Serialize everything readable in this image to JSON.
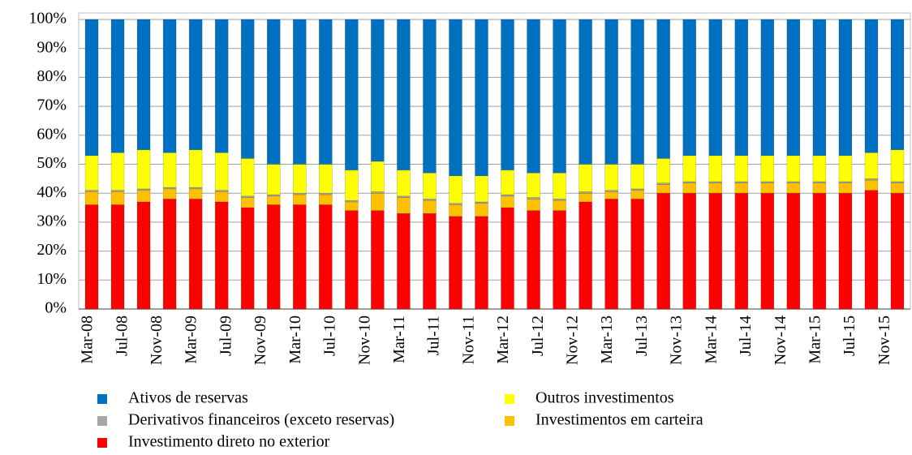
{
  "chart_data": {
    "type": "stacked_bar",
    "categories": [
      null,
      null,
      null,
      null,
      null,
      null,
      null,
      null,
      null,
      null,
      null,
      null,
      null,
      null,
      null,
      null,
      null,
      null,
      null,
      null,
      null,
      null,
      null,
      null,
      null,
      null,
      null,
      null,
      null,
      null,
      null,
      null
    ],
    "xticks": [
      "Mar-08",
      "Jul-08",
      "Nov-08",
      "Mar-09",
      "Jul-09",
      "Nov-09",
      "Mar-10",
      "Jul-10",
      "Nov-10",
      "Mar-11",
      "Jul-11",
      "Nov-11",
      "Mar-12",
      "Jul-12",
      "Nov-12",
      "Mar-13",
      "Jul-13",
      "Nov-13",
      "Mar-14",
      "Jul-14",
      "Nov-14",
      "Mar-15",
      "Jul-15",
      "Nov-15"
    ],
    "ylim": [
      0,
      100
    ],
    "yticks": [
      {
        "value": 0,
        "label": "0%"
      },
      {
        "value": 10,
        "label": "10%"
      },
      {
        "value": 20,
        "label": "20%"
      },
      {
        "value": 30,
        "label": "30%"
      },
      {
        "value": 40,
        "label": "40%"
      },
      {
        "value": 50,
        "label": "50%"
      },
      {
        "value": 60,
        "label": "60%"
      },
      {
        "value": 70,
        "label": "70%"
      },
      {
        "value": 80,
        "label": "80%"
      },
      {
        "value": 90,
        "label": "90%"
      },
      {
        "value": 100,
        "label": "100%"
      }
    ],
    "grid": true,
    "legend": "bottom",
    "series": [
      {
        "name": "Ativos de reservas",
        "color": "#0070c0",
        "values": [
          47,
          46,
          45,
          46,
          45,
          46,
          48,
          50,
          50,
          50,
          52,
          49,
          52,
          53,
          54,
          54,
          52,
          53,
          53,
          50,
          50,
          50,
          48,
          47,
          47,
          47,
          47,
          47,
          47,
          47,
          46,
          45
        ]
      },
      {
        "name": "Outros investimentos",
        "color": "#ffff00",
        "values": [
          12,
          13,
          13.5,
          12,
          13,
          13,
          13,
          10.5,
          10,
          10,
          10.5,
          10.5,
          9,
          9,
          9.5,
          9,
          8.5,
          8.5,
          9,
          9.5,
          9,
          8.5,
          8.5,
          9,
          9,
          9,
          9,
          9,
          9,
          9,
          9,
          11
        ]
      },
      {
        "name": "Derivativos financeiros (exceto reservas)",
        "color": "#a6a6a6",
        "values": [
          0.5,
          0.5,
          0.5,
          0.5,
          0.5,
          0.5,
          0.5,
          0.5,
          0.5,
          0.5,
          0.5,
          0.5,
          0.5,
          0.5,
          0.5,
          0.5,
          0.5,
          0.5,
          0.5,
          0.5,
          0.5,
          0.5,
          0.5,
          0.5,
          0.5,
          0.5,
          0.5,
          0.5,
          0.5,
          0.5,
          0.5,
          0.5
        ]
      },
      {
        "name": "Investimentos em carteira",
        "color": "#ffc000",
        "values": [
          4.5,
          4.5,
          4,
          3.5,
          3.5,
          3.5,
          3.5,
          3,
          3.5,
          3.5,
          3,
          6,
          5.5,
          4.5,
          4,
          4.5,
          4,
          4,
          3.5,
          3,
          2.5,
          3,
          3,
          3.5,
          3.5,
          3.5,
          3.5,
          3.5,
          3.5,
          3.5,
          3.5,
          3.5
        ]
      },
      {
        "name": "Investimento direto no exterior",
        "color": "#ff0000",
        "values": [
          36,
          36,
          37,
          38,
          38,
          37,
          35,
          36,
          36,
          36,
          34,
          34,
          33,
          33,
          32,
          32,
          35,
          34,
          34,
          37,
          38,
          38,
          40,
          40,
          40,
          40,
          40,
          40,
          40,
          40,
          41,
          40
        ]
      }
    ]
  }
}
